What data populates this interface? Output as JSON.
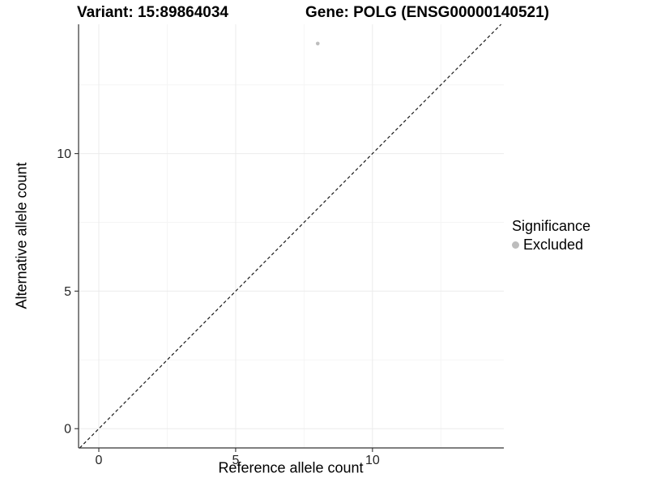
{
  "chart_data": {
    "type": "scatter",
    "titles": [
      "Variant: 15:89864034",
      "Gene: POLG (ENSG00000140521)"
    ],
    "xlabel": "Reference allele count",
    "ylabel": "Alternative allele count",
    "xlim": [
      -0.74,
      14.8
    ],
    "ylim": [
      -0.7,
      14.7
    ],
    "x_major_ticks": [
      0,
      5,
      10
    ],
    "y_major_ticks": [
      0,
      5,
      10
    ],
    "x_minor_ticks": [
      2.5,
      7.5,
      12.5
    ],
    "y_minor_ticks": [
      2.5,
      7.5,
      12.5
    ],
    "grid": "major+minor",
    "identity_line": {
      "style": "dashed",
      "slope": 1,
      "intercept": 0
    },
    "series": [
      {
        "name": "Excluded",
        "color": "#bdbdbd",
        "points": [
          {
            "x": 8,
            "y": 14
          }
        ]
      }
    ],
    "legend": {
      "title": "Significance",
      "position": "right",
      "items": [
        {
          "label": "Excluded",
          "color": "#bdbdbd",
          "marker": "circle-icon"
        }
      ]
    },
    "colors": {
      "background": "#ffffff",
      "axis_line": "#333333",
      "grid_major": "#ebebeb",
      "grid_minor": "#f5f5f5",
      "dashed_line": "#1a1a1a",
      "tick_text": "#262626",
      "point": "#bdbdbd"
    }
  }
}
